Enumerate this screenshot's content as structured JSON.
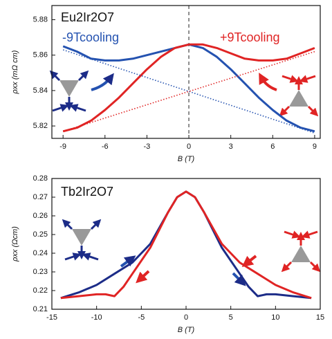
{
  "chart_data": [
    {
      "type": "line",
      "title": "Eu2Ir2O7",
      "x_label": "B (T)",
      "y_label": "ρxx (mΩ cm)",
      "annotations": [
        {
          "text": "-9Tcooling",
          "color": "#2452b0"
        },
        {
          "text": "+9Tcooling",
          "color": "#e02424"
        }
      ],
      "xlim": [
        -9.8,
        9.4
      ],
      "ylim": [
        5.813,
        5.888
      ],
      "xticks": [
        -9,
        -6,
        -3,
        0,
        3,
        6,
        9
      ],
      "yticks": [
        5.82,
        5.84,
        5.86,
        5.88
      ],
      "vlines": [
        0
      ],
      "series": [
        {
          "color": "#2452b0",
          "style": "solid",
          "x": [
            -9,
            -8,
            -7,
            -6,
            -5,
            -4,
            -3,
            -2,
            -1,
            0,
            1,
            2,
            3,
            4,
            5,
            6,
            7,
            8,
            9
          ],
          "values": [
            5.865,
            5.862,
            5.858,
            5.857,
            5.857,
            5.858,
            5.86,
            5.862,
            5.864,
            5.866,
            5.864,
            5.859,
            5.852,
            5.844,
            5.836,
            5.829,
            5.823,
            5.819,
            5.817
          ]
        },
        {
          "color": "#e02424",
          "style": "solid",
          "x": [
            -9,
            -8,
            -7,
            -6,
            -5,
            -4,
            -3,
            -2,
            -1,
            0,
            1,
            2,
            3,
            4,
            5,
            6,
            7,
            8,
            9
          ],
          "values": [
            5.817,
            5.819,
            5.823,
            5.829,
            5.836,
            5.844,
            5.852,
            5.859,
            5.864,
            5.866,
            5.866,
            5.864,
            5.861,
            5.858,
            5.857,
            5.857,
            5.858,
            5.861,
            5.864
          ]
        },
        {
          "color": "#2452b0",
          "style": "dotted",
          "x": [
            -9,
            9
          ],
          "values": [
            5.863,
            5.816
          ]
        },
        {
          "color": "#e02424",
          "style": "dotted",
          "x": [
            -9,
            9
          ],
          "values": [
            5.817,
            5.862
          ]
        }
      ]
    },
    {
      "type": "line",
      "title": "Tb2Ir2O7",
      "x_label": "B (T)",
      "y_label": "ρxx (Ωcm)",
      "xlim": [
        -15,
        15
      ],
      "ylim": [
        0.21,
        0.28
      ],
      "xticks": [
        -15,
        -10,
        -5,
        0,
        5,
        10,
        15
      ],
      "yticks": [
        0.21,
        0.22,
        0.23,
        0.24,
        0.25,
        0.26,
        0.27,
        0.28
      ],
      "series": [
        {
          "color": "#1c2c88",
          "style": "solid",
          "x": [
            -14,
            -12,
            -10,
            -8,
            -6,
            -4,
            -2,
            -1,
            0,
            1,
            2,
            4,
            6,
            7,
            8,
            9,
            10,
            12,
            14
          ],
          "values": [
            0.216,
            0.219,
            0.223,
            0.229,
            0.235,
            0.245,
            0.262,
            0.27,
            0.273,
            0.27,
            0.262,
            0.243,
            0.229,
            0.222,
            0.217,
            0.218,
            0.218,
            0.217,
            0.216
          ]
        },
        {
          "color": "#e02424",
          "style": "solid",
          "x": [
            -14,
            -12,
            -10,
            -9,
            -8,
            -7,
            -6,
            -4,
            -2,
            -1,
            0,
            1,
            2,
            4,
            6,
            8,
            10,
            12,
            14
          ],
          "values": [
            0.216,
            0.217,
            0.218,
            0.218,
            0.217,
            0.222,
            0.229,
            0.243,
            0.262,
            0.27,
            0.273,
            0.27,
            0.262,
            0.245,
            0.235,
            0.229,
            0.223,
            0.219,
            0.216
          ]
        }
      ]
    }
  ]
}
